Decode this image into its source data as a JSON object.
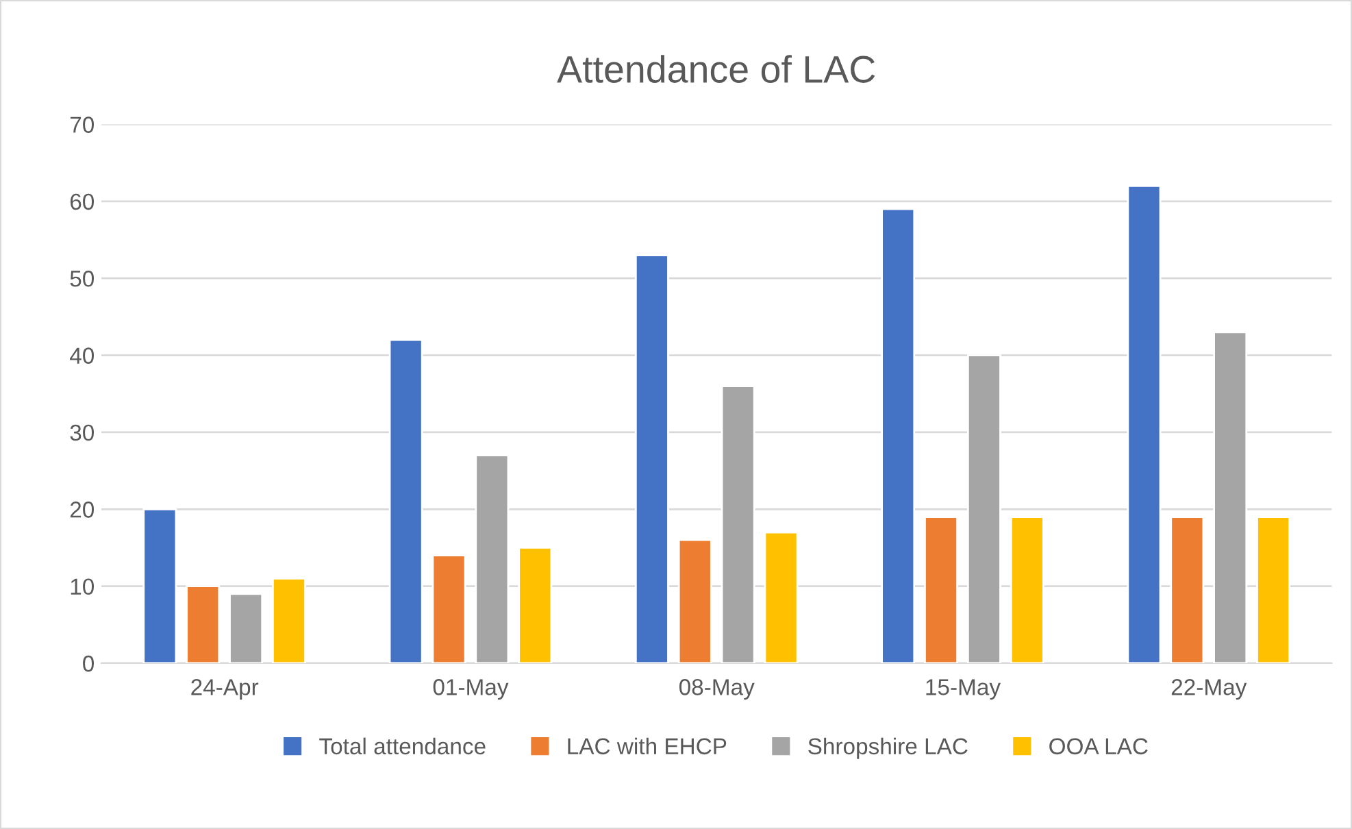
{
  "chart_data": {
    "type": "bar",
    "title": "Attendance of LAC",
    "categories": [
      "24-Apr",
      "01-May",
      "08-May",
      "15-May",
      "22-May"
    ],
    "series": [
      {
        "name": "Total attendance",
        "color": "#4472c4",
        "values": [
          20,
          42,
          53,
          59,
          62
        ]
      },
      {
        "name": "LAC with EHCP",
        "color": "#ed7d31",
        "values": [
          10,
          14,
          16,
          19,
          19
        ]
      },
      {
        "name": "Shropshire LAC",
        "color": "#a5a5a5",
        "values": [
          9,
          27,
          36,
          40,
          43
        ]
      },
      {
        "name": "OOA LAC",
        "color": "#ffc000",
        "values": [
          11,
          15,
          17,
          19,
          19
        ]
      }
    ],
    "ylim": [
      0,
      70
    ],
    "yticks": [
      0,
      10,
      20,
      30,
      40,
      50,
      60,
      70
    ],
    "grid": "y",
    "legend": "bottom"
  }
}
